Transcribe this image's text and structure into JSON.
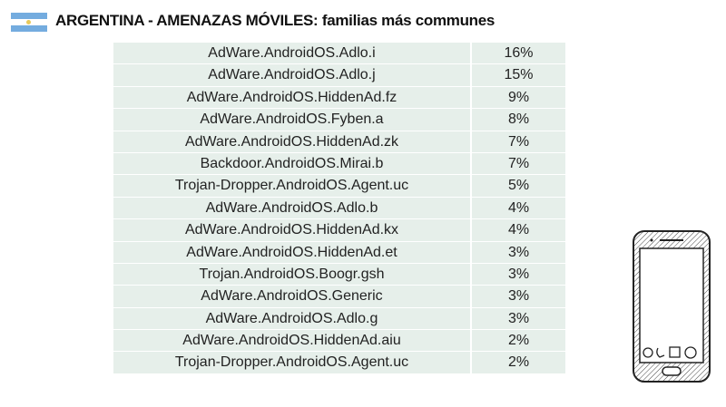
{
  "title": "ARGENTINA - AMENAZAS MÓVILES: familias más communes",
  "colors": {
    "flag_blue": "#74acdf",
    "row_bg": "#e6efea"
  },
  "rows": [
    {
      "name": "AdWare.AndroidOS.Adlo.i",
      "pct": "16%"
    },
    {
      "name": "AdWare.AndroidOS.Adlo.j",
      "pct": "15%"
    },
    {
      "name": "AdWare.AndroidOS.HiddenAd.fz",
      "pct": "9%"
    },
    {
      "name": "AdWare.AndroidOS.Fyben.a",
      "pct": "8%"
    },
    {
      "name": "AdWare.AndroidOS.HiddenAd.zk",
      "pct": "7%"
    },
    {
      "name": "Backdoor.AndroidOS.Mirai.b",
      "pct": "7%"
    },
    {
      "name": "Trojan-Dropper.AndroidOS.Agent.uc",
      "pct": "5%"
    },
    {
      "name": "AdWare.AndroidOS.Adlo.b",
      "pct": "4%"
    },
    {
      "name": "AdWare.AndroidOS.HiddenAd.kx",
      "pct": "4%"
    },
    {
      "name": "AdWare.AndroidOS.HiddenAd.et",
      "pct": "3%"
    },
    {
      "name": "Trojan.AndroidOS.Boogr.gsh",
      "pct": "3%"
    },
    {
      "name": "AdWare.AndroidOS.Generic",
      "pct": "3%"
    },
    {
      "name": "AdWare.AndroidOS.Adlo.g",
      "pct": "3%"
    },
    {
      "name": "AdWare.AndroidOS.HiddenAd.aiu",
      "pct": "2%"
    },
    {
      "name": "Trojan-Dropper.AndroidOS.Agent.uc",
      "pct": "2%"
    }
  ]
}
